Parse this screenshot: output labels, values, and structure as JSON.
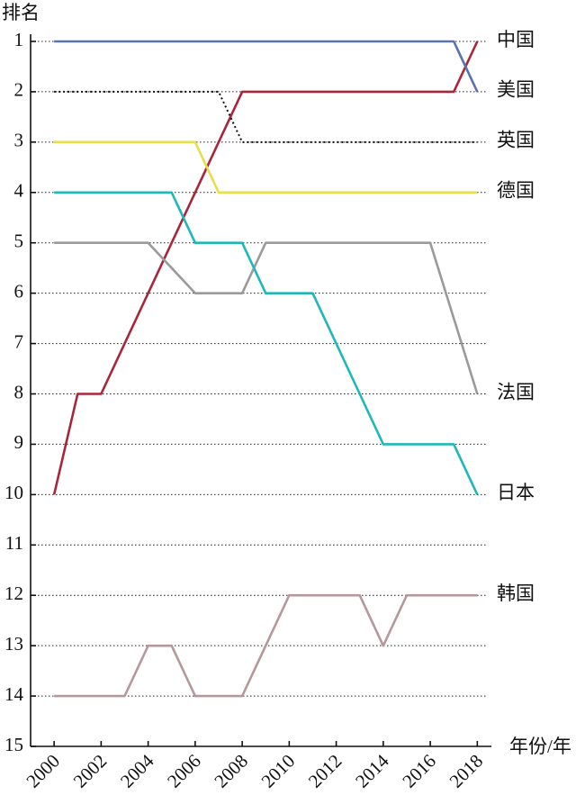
{
  "chart_data": {
    "type": "line",
    "y_label": "排名",
    "x_label": "年份/年",
    "x": [
      2000,
      2001,
      2002,
      2003,
      2004,
      2005,
      2006,
      2007,
      2008,
      2009,
      2010,
      2011,
      2012,
      2013,
      2014,
      2015,
      2016,
      2017,
      2018
    ],
    "series": [
      {
        "name": "中国",
        "color": "#a8263b",
        "dashed": false,
        "values": [
          10,
          8,
          8,
          7,
          6,
          5,
          4,
          3,
          2,
          2,
          2,
          2,
          2,
          2,
          2,
          2,
          2,
          2,
          1
        ]
      },
      {
        "name": "美国",
        "color": "#5a72b0",
        "dashed": false,
        "values": [
          1,
          1,
          1,
          1,
          1,
          1,
          1,
          1,
          1,
          1,
          1,
          1,
          1,
          1,
          1,
          1,
          1,
          1,
          2
        ]
      },
      {
        "name": "英国",
        "color": "#111111",
        "dashed": true,
        "values": [
          2,
          2,
          2,
          2,
          2,
          2,
          2,
          2,
          3,
          3,
          3,
          3,
          3,
          3,
          3,
          3,
          3,
          3,
          3
        ]
      },
      {
        "name": "德国",
        "color": "#e4df4a",
        "dashed": false,
        "values": [
          3,
          3,
          3,
          3,
          3,
          3,
          3,
          4,
          4,
          4,
          4,
          4,
          4,
          4,
          4,
          4,
          4,
          4,
          4
        ]
      },
      {
        "name": "法国",
        "color": "#9a9a9a",
        "dashed": false,
        "values": [
          5,
          5,
          5,
          5,
          5,
          5.5,
          6,
          6,
          6,
          5,
          5,
          5,
          5,
          5,
          5,
          5,
          5,
          6.5,
          8
        ]
      },
      {
        "name": "日本",
        "color": "#1fb8b8",
        "dashed": false,
        "values": [
          4,
          4,
          4,
          4,
          4,
          4,
          5,
          5,
          5,
          6,
          6,
          6,
          7,
          8,
          9,
          9,
          9,
          9,
          10
        ]
      },
      {
        "name": "韩国",
        "color": "#b5979c",
        "dashed": false,
        "values": [
          14,
          14,
          14,
          14,
          13,
          13,
          14,
          14,
          14,
          13,
          12,
          12,
          12,
          12,
          13,
          12,
          12,
          12,
          12
        ]
      }
    ],
    "xlim": [
      1999,
      2018.6
    ],
    "xticks": [
      2000,
      2002,
      2004,
      2006,
      2008,
      2010,
      2012,
      2014,
      2016,
      2018
    ],
    "ylim": [
      1,
      15
    ],
    "y_inverted": true,
    "yticks": [
      1,
      2,
      3,
      4,
      5,
      6,
      7,
      8,
      9,
      10,
      11,
      12,
      13,
      14,
      15
    ],
    "grid": true
  }
}
